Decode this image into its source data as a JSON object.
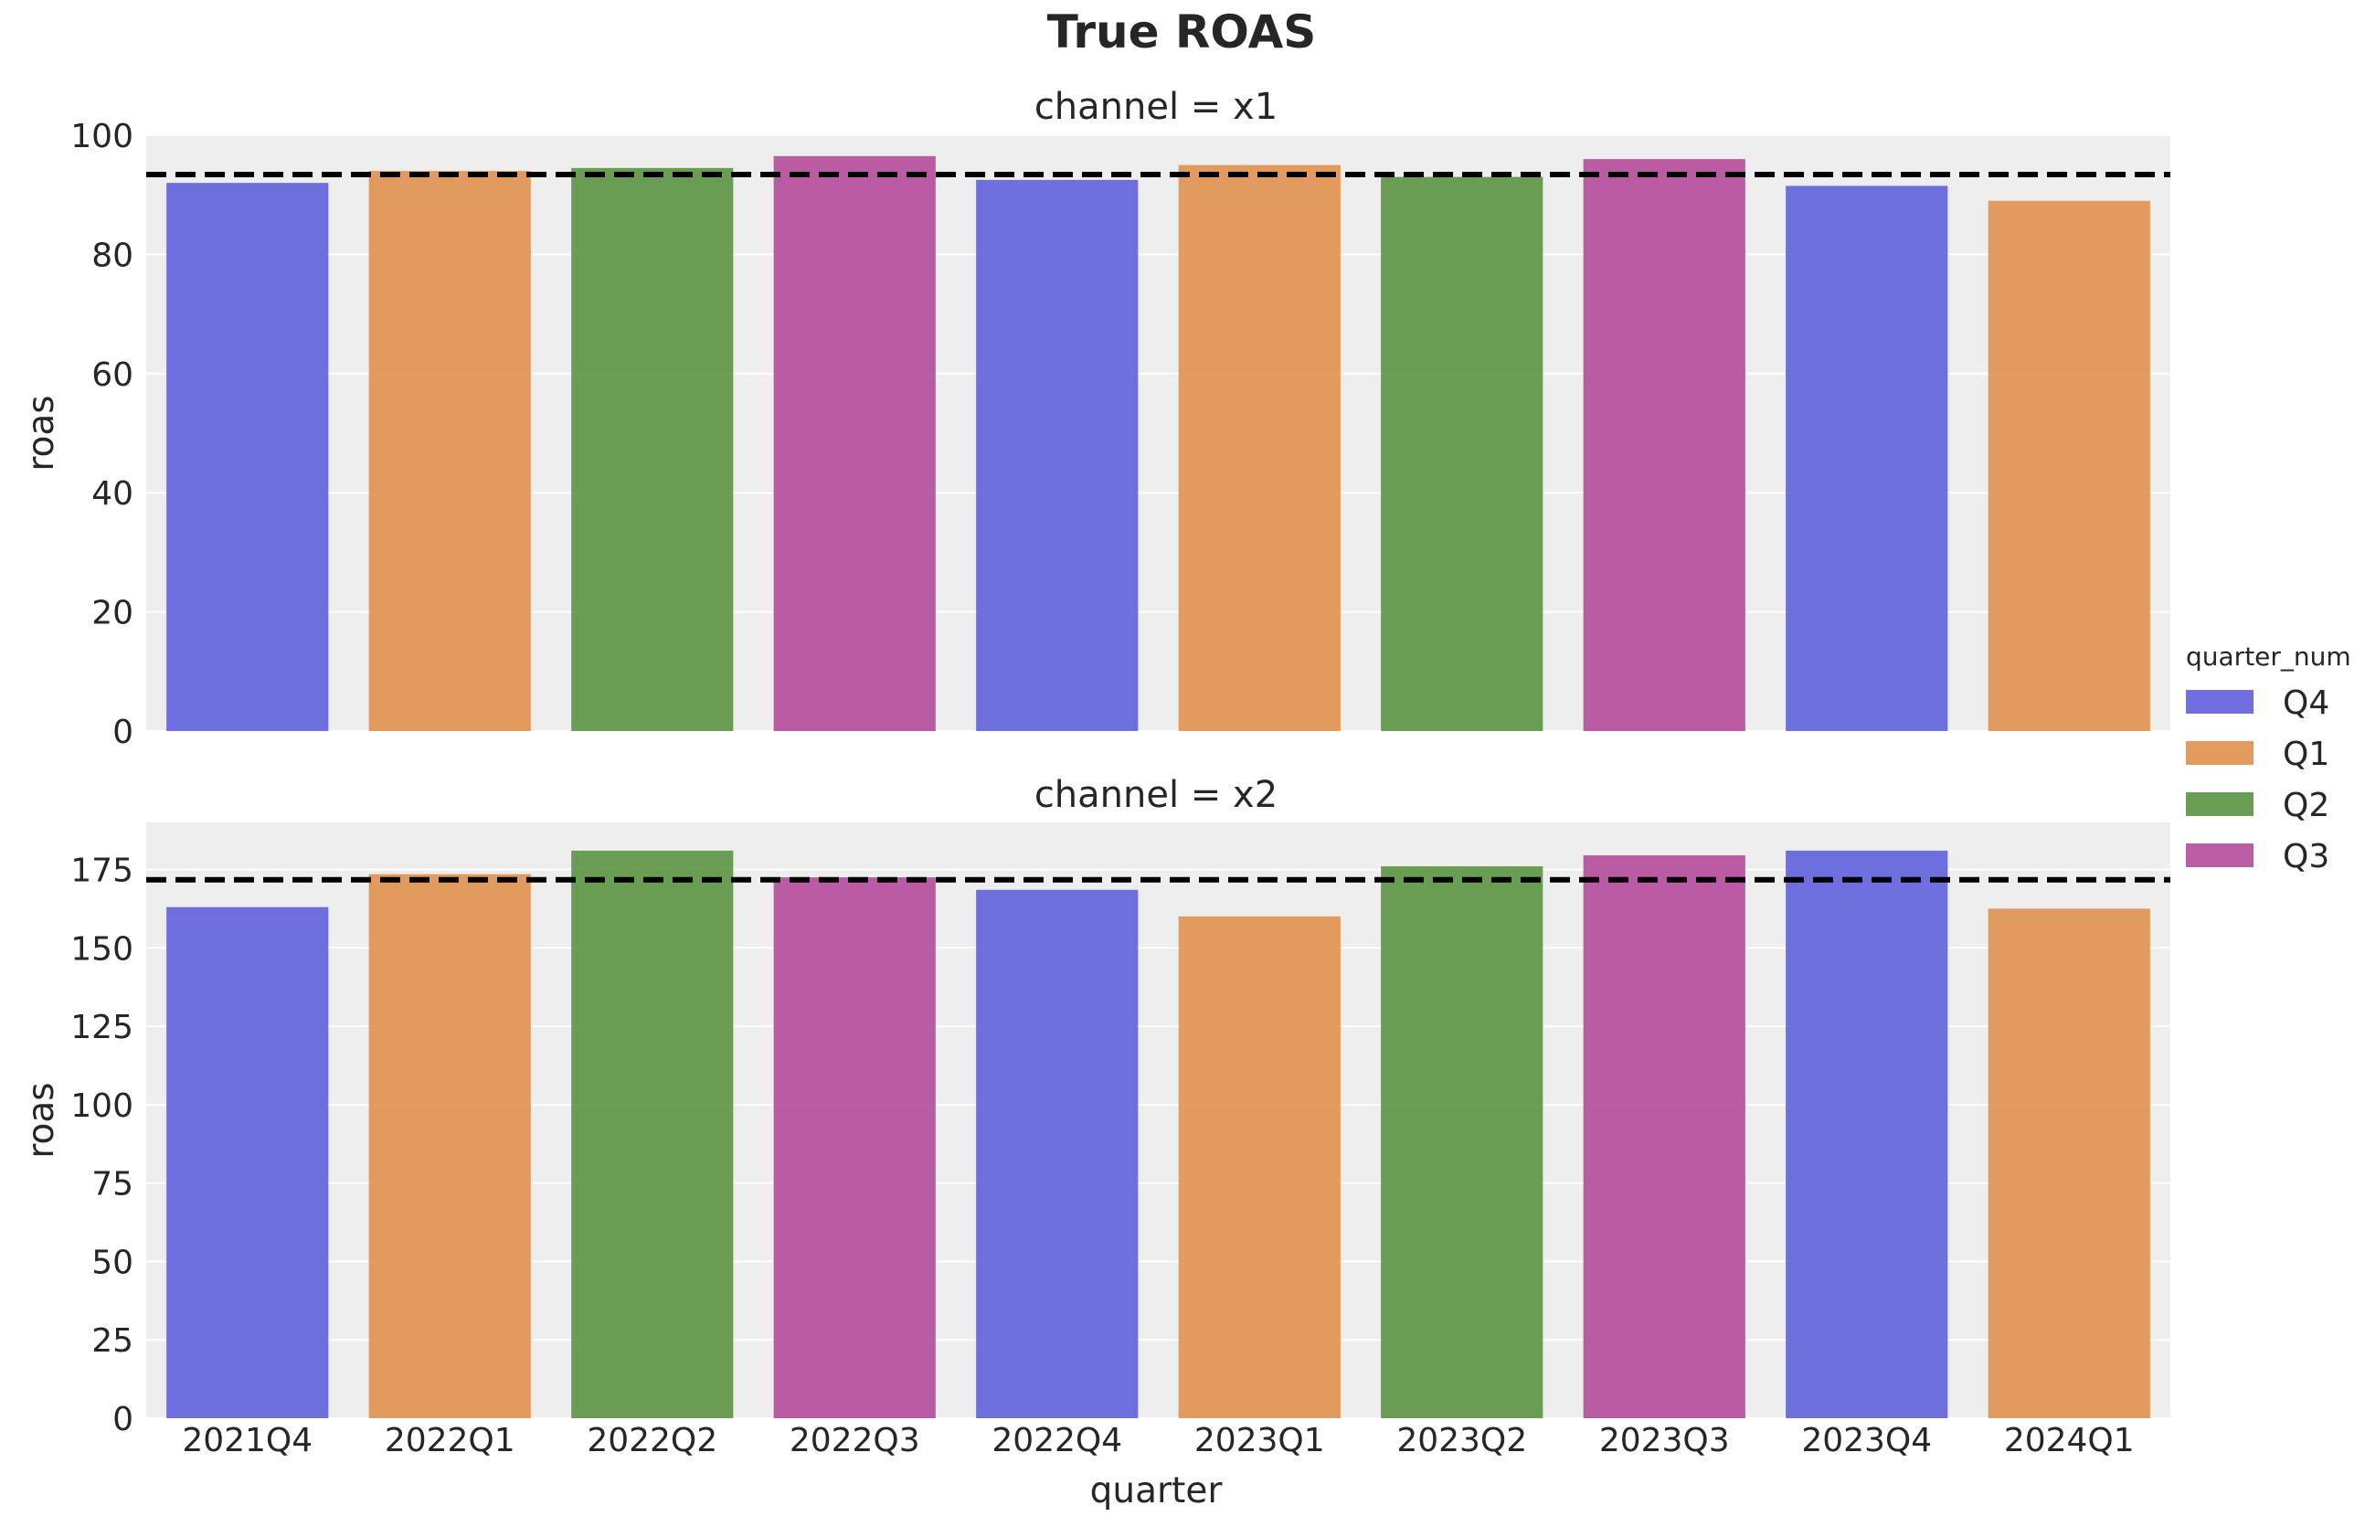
{
  "title": "True ROAS",
  "legend": {
    "title": "quarter_num",
    "placement": "right",
    "entries": [
      {
        "label": "Q4",
        "color": "#5f5fdc"
      },
      {
        "label": "Q1",
        "color": "#e0914f"
      },
      {
        "label": "Q2",
        "color": "#5b9343"
      },
      {
        "label": "Q3",
        "color": "#b44a9a"
      }
    ]
  },
  "chart_data": [
    {
      "type": "bar",
      "title": "channel = x1",
      "xlabel": "",
      "ylabel": "roas",
      "categories": [
        "2021Q4",
        "2022Q1",
        "2022Q2",
        "2022Q3",
        "2022Q4",
        "2023Q1",
        "2023Q2",
        "2023Q3",
        "2023Q4",
        "2024Q1"
      ],
      "values": [
        92,
        94,
        94.5,
        96.5,
        92.5,
        95,
        93,
        96,
        91.5,
        89
      ],
      "hue": [
        "Q4",
        "Q1",
        "Q2",
        "Q3",
        "Q4",
        "Q1",
        "Q2",
        "Q3",
        "Q4",
        "Q1"
      ],
      "mean_line": 93.4,
      "ylim": [
        0,
        100
      ],
      "yticks": [
        0,
        20,
        40,
        60,
        80,
        100
      ],
      "grid": true
    },
    {
      "type": "bar",
      "title": "channel = x2",
      "xlabel": "quarter",
      "ylabel": "roas",
      "categories": [
        "2021Q4",
        "2022Q1",
        "2022Q2",
        "2022Q3",
        "2022Q4",
        "2023Q1",
        "2023Q2",
        "2023Q3",
        "2023Q4",
        "2024Q1"
      ],
      "values": [
        163,
        173.5,
        181,
        172.5,
        168.5,
        160,
        176,
        179.5,
        181,
        162.5
      ],
      "hue": [
        "Q4",
        "Q1",
        "Q2",
        "Q3",
        "Q4",
        "Q1",
        "Q2",
        "Q3",
        "Q4",
        "Q1"
      ],
      "mean_line": 171.7,
      "ylim": [
        0,
        190
      ],
      "yticks": [
        0,
        25,
        50,
        75,
        100,
        125,
        150,
        175
      ],
      "grid": true
    }
  ]
}
